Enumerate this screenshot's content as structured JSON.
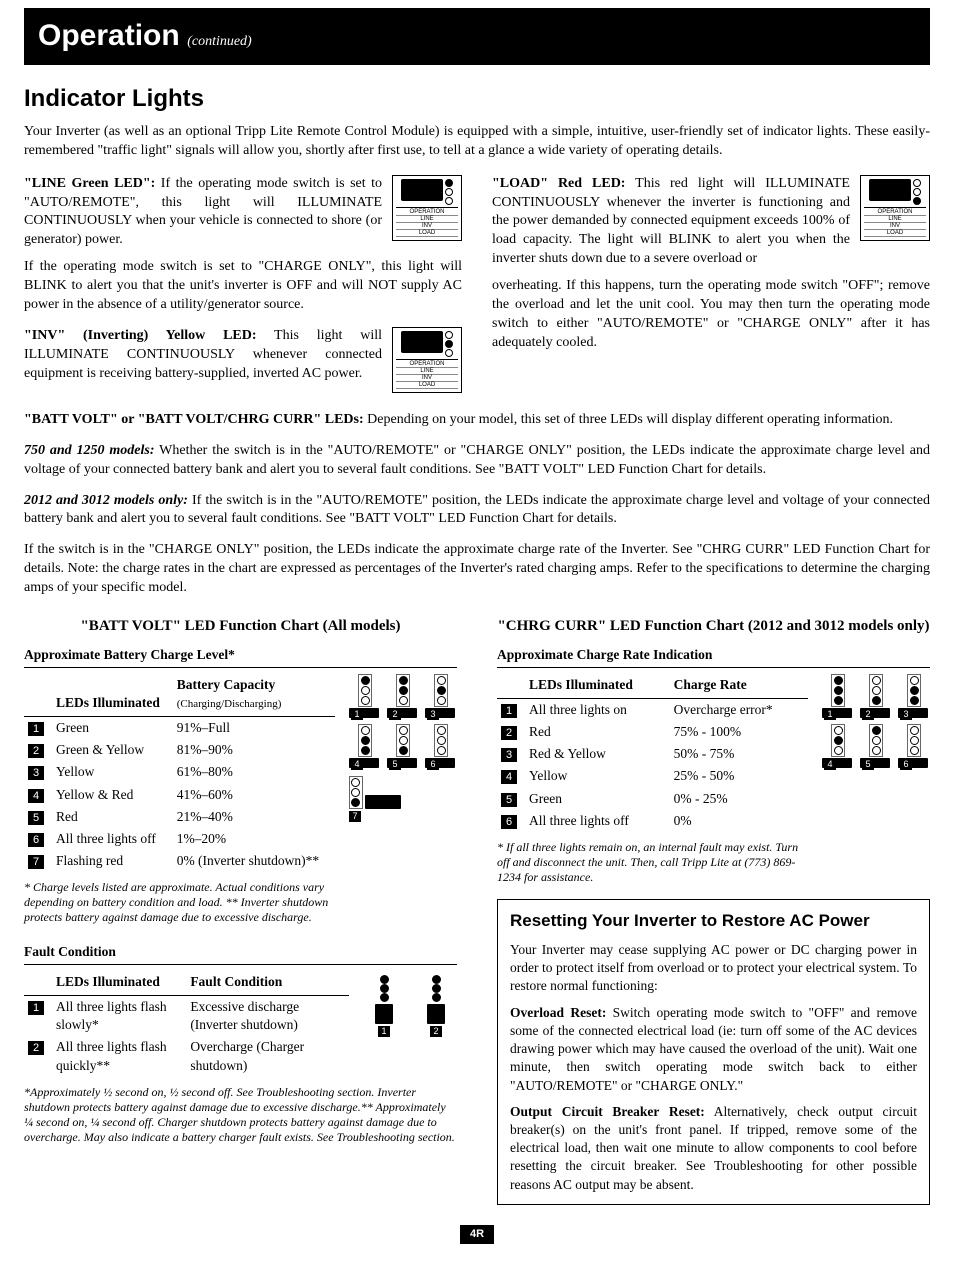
{
  "header": {
    "title": "Operation",
    "continued": "(continued)"
  },
  "section_title": "Indicator Lights",
  "intro": "Your Inverter (as well as an optional Tripp Lite Remote Control Module) is equipped with a simple, intuitive, user-friendly set of indicator lights. These easily-remembered \"traffic light\" signals will allow you, shortly after first use, to tell at a glance a wide variety of operating details.",
  "leds": {
    "line": {
      "label": "\"LINE Green LED\":",
      "text": " If the operating mode switch is set to \"AUTO/REMOTE\", this light will ILLUMINATE CONTINUOUSLY when your vehicle is connected to shore (or generator) power."
    },
    "line_extra": "If the operating mode switch is set to \"CHARGE ONLY\", this light will BLINK to alert you that the unit's inverter is OFF and will NOT supply AC power in the absence of a utility/generator source.",
    "inv": {
      "label": "\"INV\" (Inverting) Yellow LED:",
      "text": " This light will ILLUMINATE CONTINUOUSLY whenever connected equipment is receiving battery-supplied, inverted AC power."
    },
    "load": {
      "label": "\"LOAD\" Red LED:",
      "text": " This red light will ILLUMINATE CONTINUOUSLY whenever the inverter is functioning and the power demanded by connected equipment exceeds 100% of load capacity. The light will BLINK to alert you when the inverter shuts down due to a severe overload or"
    },
    "load_extra": "overheating. If this happens, turn the operating mode switch \"OFF\"; remove the overload and let the unit cool. You may then turn the operating mode switch to either \"AUTO/REMOTE\" or \"CHARGE ONLY\" after it has adequately cooled."
  },
  "batt_intro": {
    "label": "\"BATT VOLT\" or \"BATT VOLT/CHRG CURR\" LEDs:",
    "text": " Depending on your model, this set of three LEDs will display different operating information."
  },
  "models_750": {
    "label": "750 and 1250 models:",
    "text": " Whether the switch is in the \"AUTO/REMOTE\" or \"CHARGE ONLY\" position, the LEDs indicate the approximate charge level and voltage of your connected battery bank and alert you to several fault conditions. See \"BATT VOLT\" LED Function Chart for details."
  },
  "models_2012": {
    "label": "2012 and 3012 models only:",
    "text": " If the switch is in the \"AUTO/REMOTE\" position, the LEDs indicate the approximate charge level and voltage of your connected battery bank and alert you to several fault conditions. See \"BATT VOLT\" LED Function Chart for details."
  },
  "charge_only_p": "If the switch is in the \"CHARGE ONLY\" position, the LEDs indicate the approximate charge rate of the Inverter. See \"CHRG CURR\" LED Function Chart for details. Note: the charge rates in the chart are expressed as percentages of the Inverter's rated charging amps. Refer to the specifications to determine the charging amps of your specific model.",
  "batt_chart": {
    "title": "\"BATT VOLT\" LED Function Chart (All models)",
    "subhead": "Approximate Battery Charge Level*",
    "col1": "LEDs Illuminated",
    "col2_a": "Battery Capacity",
    "col2_b": "(Charging/Discharging)",
    "rows": [
      {
        "n": "1",
        "led": "Green",
        "cap": "91%–Full"
      },
      {
        "n": "2",
        "led": "Green & Yellow",
        "cap": "81%–90%"
      },
      {
        "n": "3",
        "led": "Yellow",
        "cap": "61%–80%"
      },
      {
        "n": "4",
        "led": "Yellow & Red",
        "cap": "41%–60%"
      },
      {
        "n": "5",
        "led": "Red",
        "cap": "21%–40%"
      },
      {
        "n": "6",
        "led": "All three lights off",
        "cap": "1%–20%"
      },
      {
        "n": "7",
        "led": "Flashing red",
        "cap": "0% (Inverter shutdown)**"
      }
    ],
    "footnote": "* Charge levels listed are approximate. Actual conditions vary depending on battery condition and load. ** Inverter shutdown protects battery against damage due to excessive discharge."
  },
  "fault": {
    "subhead": "Fault Condition",
    "col1": "LEDs Illuminated",
    "col2": "Fault Condition",
    "rows": [
      {
        "n": "1",
        "led": "All three lights flash slowly*",
        "f": "Excessive discharge (Inverter shutdown)"
      },
      {
        "n": "2",
        "led": "All three lights flash quickly**",
        "f": "Overcharge (Charger shutdown)"
      }
    ],
    "footnote": "*Approximately ½ second on, ½ second off. See Troubleshooting section. Inverter shutdown protects battery against damage due to excessive discharge.** Approximately ¼ second on, ¼ second off. Charger shutdown protects battery against damage due to overcharge. May also indicate a battery charger fault exists. See Troubleshooting section."
  },
  "chrg_chart": {
    "title": "\"CHRG CURR\" LED Function Chart (2012 and 3012 models only)",
    "subhead": "Approximate Charge Rate Indication",
    "col1": "LEDs Illuminated",
    "col2": "Charge Rate",
    "rows": [
      {
        "n": "1",
        "led": "All three lights on",
        "cap": "Overcharge error*"
      },
      {
        "n": "2",
        "led": "Red",
        "cap": "75% - 100%"
      },
      {
        "n": "3",
        "led": "Red & Yellow",
        "cap": "50% - 75%"
      },
      {
        "n": "4",
        "led": "Yellow",
        "cap": "25% - 50%"
      },
      {
        "n": "5",
        "led": "Green",
        "cap": "0% - 25%"
      },
      {
        "n": "6",
        "led": "All three lights off",
        "cap": "0%"
      }
    ],
    "footnote": "* If all three lights remain on, an internal fault may exist. Turn off and disconnect the unit. Then, call Tripp Lite at (773) 869-1234 for assistance."
  },
  "reset": {
    "title": "Resetting Your Inverter to Restore AC Power",
    "p1": "Your Inverter may cease supplying AC power or DC charging power in order to protect itself from overload or to protect your electrical system. To restore normal functioning:",
    "p2_label": "Overload Reset:",
    "p2": " Switch operating mode switch to \"OFF\" and remove some of the connected electrical load (ie: turn off some of the AC devices drawing power which may have caused the overload of the unit). Wait one minute, then switch operating mode switch back to either \"AUTO/REMOTE\" or \"CHARGE ONLY.\"",
    "p3_label": "Output Circuit Breaker Reset:",
    "p3": " Alternatively, check output circuit breaker(s) on the unit's front panel. If tripped, remove some of the electrical load, then wait one minute to allow components to cool before resetting the circuit breaker. See Troubleshooting for other possible reasons AC output may be absent."
  },
  "page": "4R",
  "icon_labels": {
    "op": "OPERATION",
    "line": "LINE",
    "inv": "INV",
    "load": "LOAD"
  }
}
